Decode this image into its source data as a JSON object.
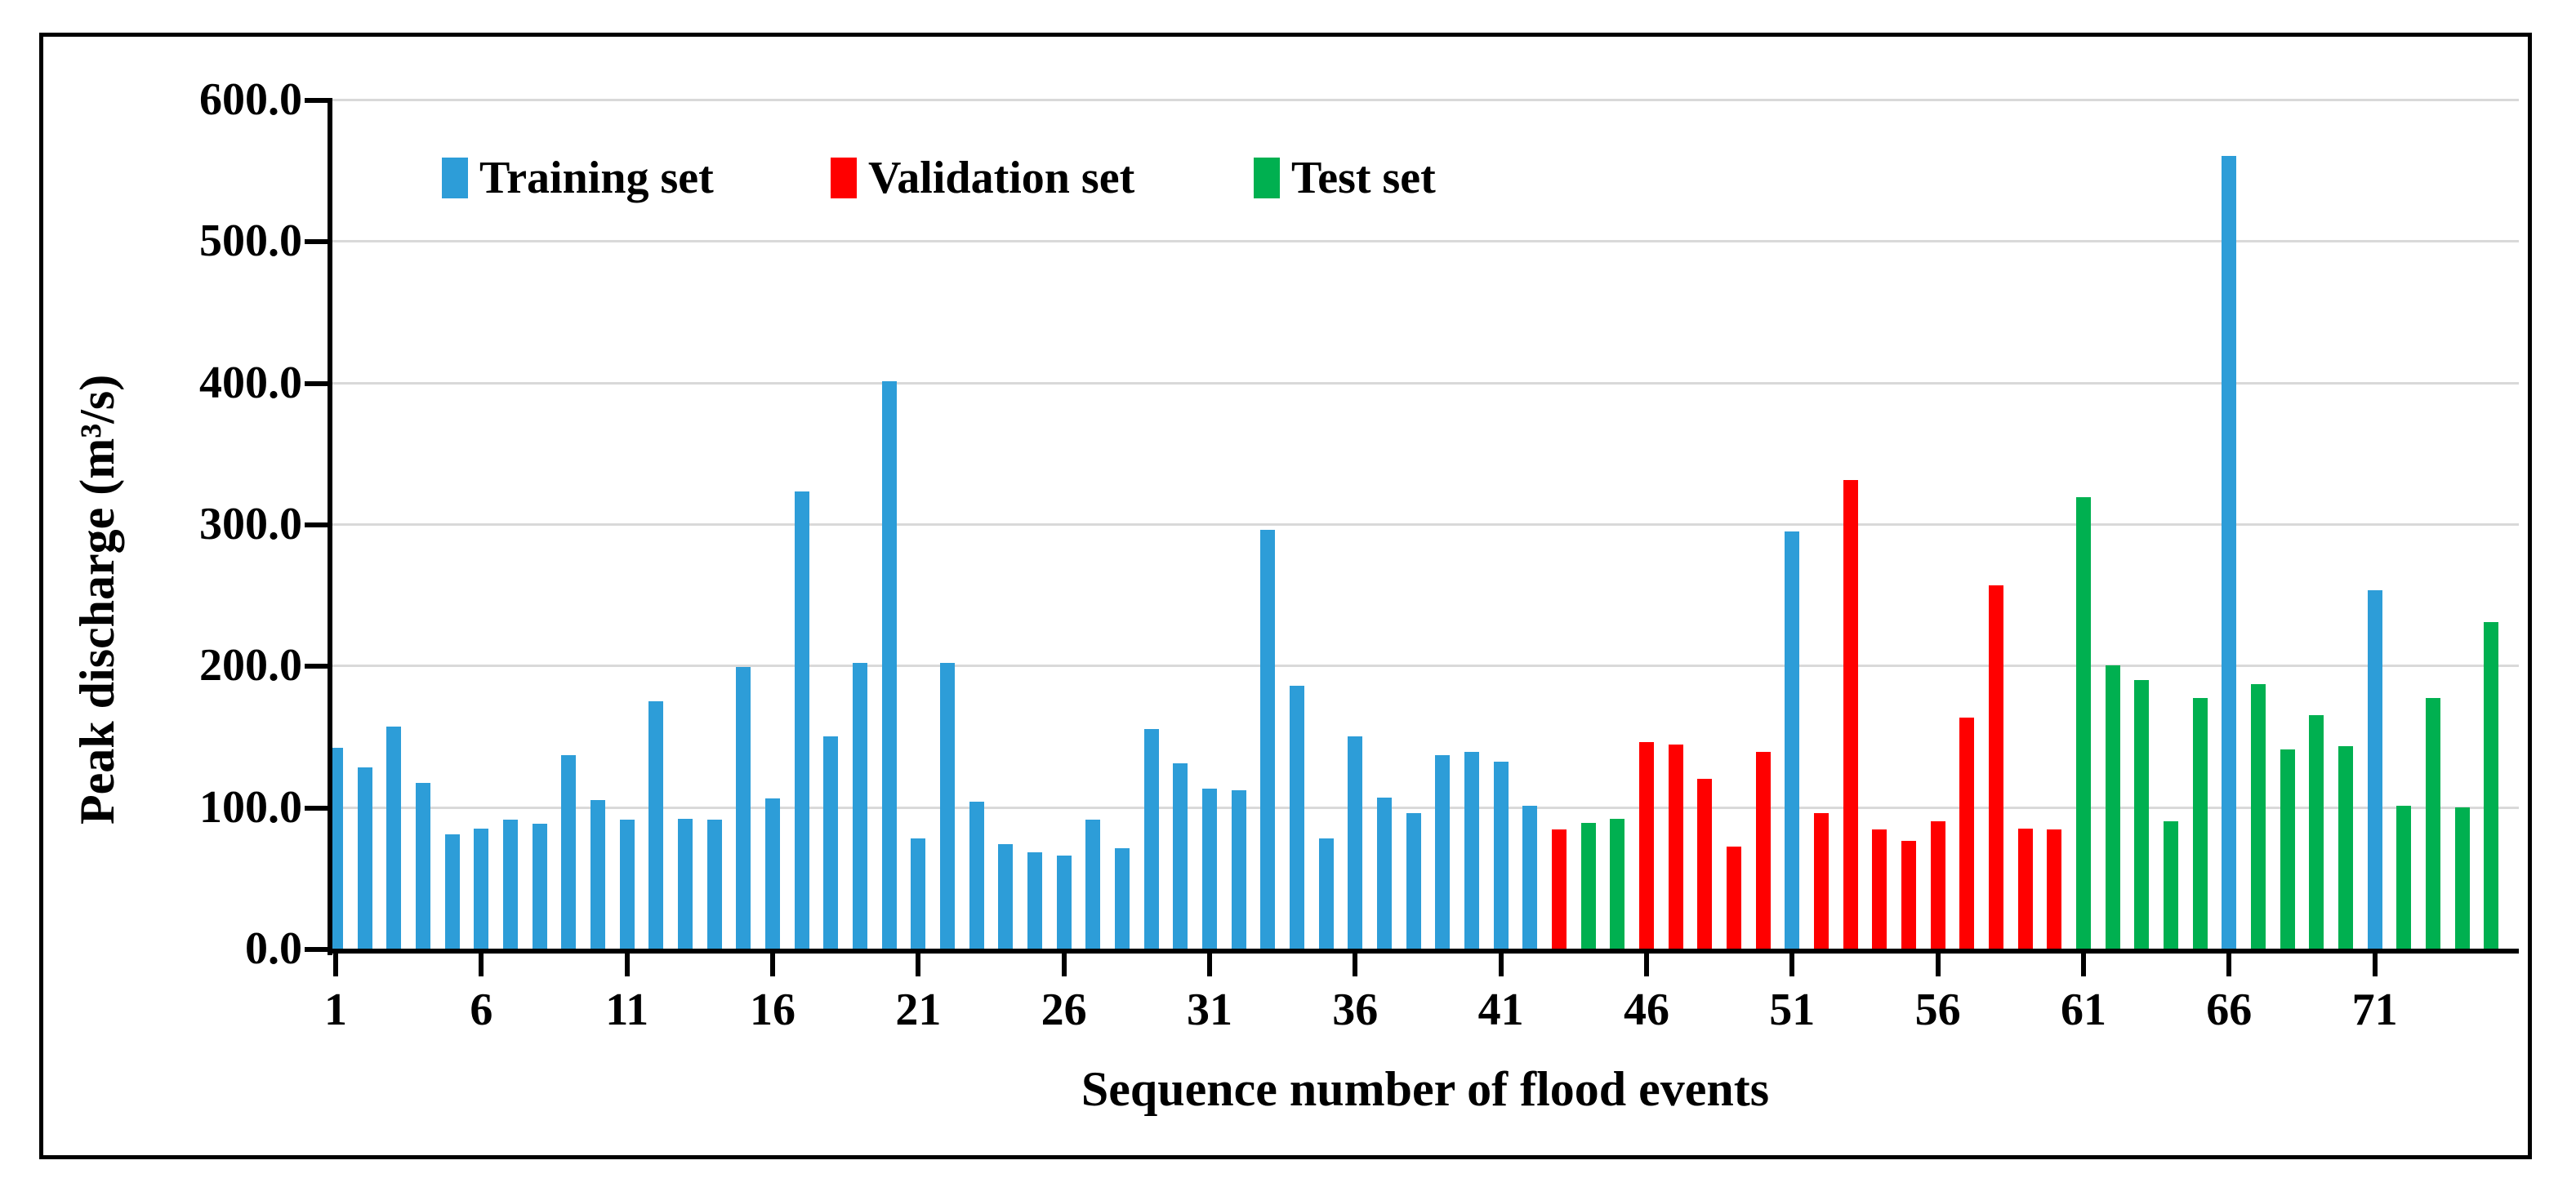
{
  "figure": {
    "legend": [
      {
        "label": "Training set",
        "key": "train",
        "color": "#2D9DD8"
      },
      {
        "label": "Validation set",
        "key": "val",
        "color": "#FF0000"
      },
      {
        "label": "Test set",
        "key": "test",
        "color": "#00B050"
      }
    ]
  },
  "chart_data": {
    "type": "bar",
    "title": "",
    "xlabel": "Sequence number of flood events",
    "ylabel": "Peak discharge (m³/s)",
    "ylim": [
      0,
      600
    ],
    "ytick_step": 100,
    "ytick_labels": [
      "0.0",
      "100.0",
      "200.0",
      "300.0",
      "400.0",
      "500.0",
      "600.0"
    ],
    "xtick_positions": [
      1,
      6,
      11,
      16,
      21,
      26,
      31,
      36,
      41,
      46,
      51,
      56,
      61,
      66,
      71
    ],
    "xtick_labels": [
      "1",
      "6",
      "11",
      "16",
      "21",
      "26",
      "31",
      "36",
      "41",
      "46",
      "51",
      "56",
      "61",
      "66",
      "71"
    ],
    "grid": "horizontal",
    "legend_position": "top-inside",
    "set_colors": {
      "train": "#2D9DD8",
      "val": "#FF0000",
      "test": "#00B050"
    },
    "series_note": "75 flood events; value = peak discharge m3/s; s = dataset membership",
    "points": [
      {
        "n": 1,
        "v": 142,
        "s": "train"
      },
      {
        "n": 2,
        "v": 128,
        "s": "train"
      },
      {
        "n": 3,
        "v": 157,
        "s": "train"
      },
      {
        "n": 4,
        "v": 117,
        "s": "train"
      },
      {
        "n": 5,
        "v": 81,
        "s": "train"
      },
      {
        "n": 6,
        "v": 85,
        "s": "train"
      },
      {
        "n": 7,
        "v": 91,
        "s": "train"
      },
      {
        "n": 8,
        "v": 88,
        "s": "train"
      },
      {
        "n": 9,
        "v": 137,
        "s": "train"
      },
      {
        "n": 10,
        "v": 105,
        "s": "train"
      },
      {
        "n": 11,
        "v": 91,
        "s": "train"
      },
      {
        "n": 12,
        "v": 175,
        "s": "train"
      },
      {
        "n": 13,
        "v": 92,
        "s": "train"
      },
      {
        "n": 14,
        "v": 91,
        "s": "train"
      },
      {
        "n": 15,
        "v": 199,
        "s": "train"
      },
      {
        "n": 16,
        "v": 106,
        "s": "train"
      },
      {
        "n": 17,
        "v": 323,
        "s": "train"
      },
      {
        "n": 18,
        "v": 150,
        "s": "train"
      },
      {
        "n": 19,
        "v": 202,
        "s": "train"
      },
      {
        "n": 20,
        "v": 401,
        "s": "train"
      },
      {
        "n": 21,
        "v": 78,
        "s": "train"
      },
      {
        "n": 22,
        "v": 202,
        "s": "train"
      },
      {
        "n": 23,
        "v": 104,
        "s": "train"
      },
      {
        "n": 24,
        "v": 74,
        "s": "train"
      },
      {
        "n": 25,
        "v": 68,
        "s": "train"
      },
      {
        "n": 26,
        "v": 66,
        "s": "train"
      },
      {
        "n": 27,
        "v": 91,
        "s": "train"
      },
      {
        "n": 28,
        "v": 71,
        "s": "train"
      },
      {
        "n": 29,
        "v": 155,
        "s": "train"
      },
      {
        "n": 30,
        "v": 131,
        "s": "train"
      },
      {
        "n": 31,
        "v": 113,
        "s": "train"
      },
      {
        "n": 32,
        "v": 112,
        "s": "train"
      },
      {
        "n": 33,
        "v": 296,
        "s": "train"
      },
      {
        "n": 34,
        "v": 186,
        "s": "train"
      },
      {
        "n": 35,
        "v": 78,
        "s": "train"
      },
      {
        "n": 36,
        "v": 150,
        "s": "train"
      },
      {
        "n": 37,
        "v": 107,
        "s": "train"
      },
      {
        "n": 38,
        "v": 96,
        "s": "train"
      },
      {
        "n": 39,
        "v": 137,
        "s": "train"
      },
      {
        "n": 40,
        "v": 139,
        "s": "train"
      },
      {
        "n": 41,
        "v": 132,
        "s": "train"
      },
      {
        "n": 42,
        "v": 101,
        "s": "train"
      },
      {
        "n": 43,
        "v": 84,
        "s": "val"
      },
      {
        "n": 44,
        "v": 89,
        "s": "test"
      },
      {
        "n": 45,
        "v": 92,
        "s": "test"
      },
      {
        "n": 46,
        "v": 146,
        "s": "val"
      },
      {
        "n": 47,
        "v": 144,
        "s": "val"
      },
      {
        "n": 48,
        "v": 120,
        "s": "val"
      },
      {
        "n": 49,
        "v": 72,
        "s": "val"
      },
      {
        "n": 50,
        "v": 139,
        "s": "val"
      },
      {
        "n": 51,
        "v": 295,
        "s": "train"
      },
      {
        "n": 52,
        "v": 96,
        "s": "val"
      },
      {
        "n": 53,
        "v": 331,
        "s": "val"
      },
      {
        "n": 54,
        "v": 84,
        "s": "val"
      },
      {
        "n": 55,
        "v": 76,
        "s": "val"
      },
      {
        "n": 56,
        "v": 90,
        "s": "val"
      },
      {
        "n": 57,
        "v": 163,
        "s": "val"
      },
      {
        "n": 58,
        "v": 257,
        "s": "val"
      },
      {
        "n": 59,
        "v": 85,
        "s": "val"
      },
      {
        "n": 60,
        "v": 84,
        "s": "val"
      },
      {
        "n": 61,
        "v": 319,
        "s": "test"
      },
      {
        "n": 62,
        "v": 200,
        "s": "test"
      },
      {
        "n": 63,
        "v": 190,
        "s": "test"
      },
      {
        "n": 64,
        "v": 90,
        "s": "test"
      },
      {
        "n": 65,
        "v": 177,
        "s": "test"
      },
      {
        "n": 66,
        "v": 560,
        "s": "train"
      },
      {
        "n": 67,
        "v": 187,
        "s": "test"
      },
      {
        "n": 68,
        "v": 141,
        "s": "test"
      },
      {
        "n": 69,
        "v": 165,
        "s": "test"
      },
      {
        "n": 70,
        "v": 143,
        "s": "test"
      },
      {
        "n": 71,
        "v": 253,
        "s": "train"
      },
      {
        "n": 72,
        "v": 101,
        "s": "test"
      },
      {
        "n": 73,
        "v": 177,
        "s": "test"
      },
      {
        "n": 74,
        "v": 100,
        "s": "test"
      },
      {
        "n": 75,
        "v": 231,
        "s": "test"
      }
    ]
  }
}
